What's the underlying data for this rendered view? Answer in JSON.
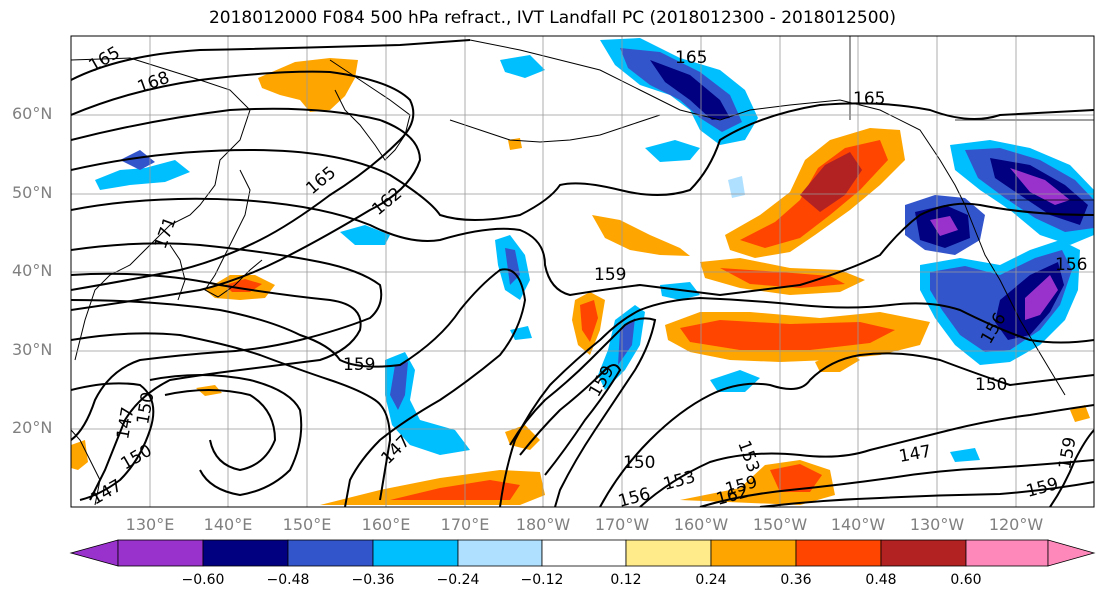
{
  "title": "2018012000 F084 500 hPa refract., IVT Landfall PC (2018012300 - 2018012500)",
  "lat_labels": [
    "60°N",
    "50°N",
    "40°N",
    "30°N",
    "20°N"
  ],
  "lon_labels": [
    "130°E",
    "140°E",
    "150°E",
    "160°E",
    "170°E",
    "180°W",
    "170°W",
    "160°W",
    "150°W",
    "140°W",
    "130°W",
    "120°W"
  ],
  "colorbar": {
    "ticks": [
      "−0.60",
      "−0.48",
      "−0.36",
      "−0.24",
      "−0.12",
      "0.12",
      "0.24",
      "0.36",
      "0.48",
      "0.60"
    ],
    "colors": [
      "#9932CC",
      "#000080",
      "#3355CC",
      "#00BFFF",
      "#B0E0FF",
      "#FFFFFF",
      "#FFEB8A",
      "#FFA500",
      "#FF4500",
      "#B22222",
      "#FF88BB"
    ]
  },
  "contour_labels": [
    "165",
    "168",
    "165",
    "162",
    "165",
    "171",
    "159",
    "159",
    "147",
    "150",
    "153",
    "156",
    "159",
    "162",
    "150",
    "147",
    "153",
    "159",
    "150",
    "147",
    "159",
    "159",
    "156",
    "165",
    "147",
    "150",
    "156"
  ],
  "fill_colors": {
    "purple": "#9932CC",
    "navy": "#000080",
    "blue": "#3355CC",
    "cyan": "#00BFFF",
    "light_blue": "#B0E0FF",
    "yellow": "#FFEB8A",
    "orange": "#FFA500",
    "red_orange": "#FF4500",
    "dark_red": "#B22222",
    "pink": "#FF88BB"
  }
}
